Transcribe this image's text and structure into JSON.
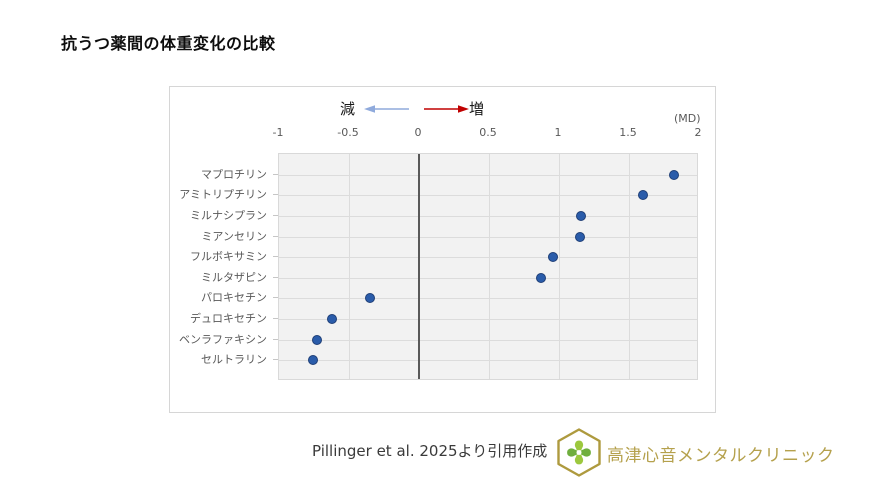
{
  "title": "抗うつ薬間の体重変化の比較",
  "chart_data": {
    "type": "scatter",
    "orientation": "horizontal-dot-plot",
    "unit_label": "(MD)",
    "legend": {
      "decrease_label": "減",
      "increase_label": "増"
    },
    "xlim": [
      -1,
      2
    ],
    "x_ticks": [
      -1,
      -0.5,
      0,
      0.5,
      1,
      1.5,
      2
    ],
    "x_tick_labels": [
      "-1",
      "-0.5",
      "0",
      "0.5",
      "1",
      "1.5",
      "2"
    ],
    "grid": true,
    "categories": [
      "マプロチリン",
      "アミトリプチリン",
      "ミルナシプラン",
      "ミアンセリン",
      "フルボキサミン",
      "ミルタザピン",
      "パロキセチン",
      "デュロキセチン",
      "ベンラファキシン",
      "セルトラリン"
    ],
    "values": [
      1.82,
      1.6,
      1.16,
      1.15,
      0.96,
      0.87,
      -0.35,
      -0.62,
      -0.73,
      -0.76
    ]
  },
  "footer": {
    "citation": "Pillinger et al. 2025より引用作成",
    "clinic_name": "高津心音メンタルクリニック"
  },
  "colors": {
    "marker": "#2a5caa",
    "marker-border": "#1f3f77",
    "arrow-decrease": "#8faadc",
    "arrow-increase": "#c00000",
    "gold-text": "#b5a14d",
    "logo-gold": "#ae9a3e",
    "leaf-green-light": "#9cc83e",
    "leaf-green-dark": "#6fae3e"
  }
}
